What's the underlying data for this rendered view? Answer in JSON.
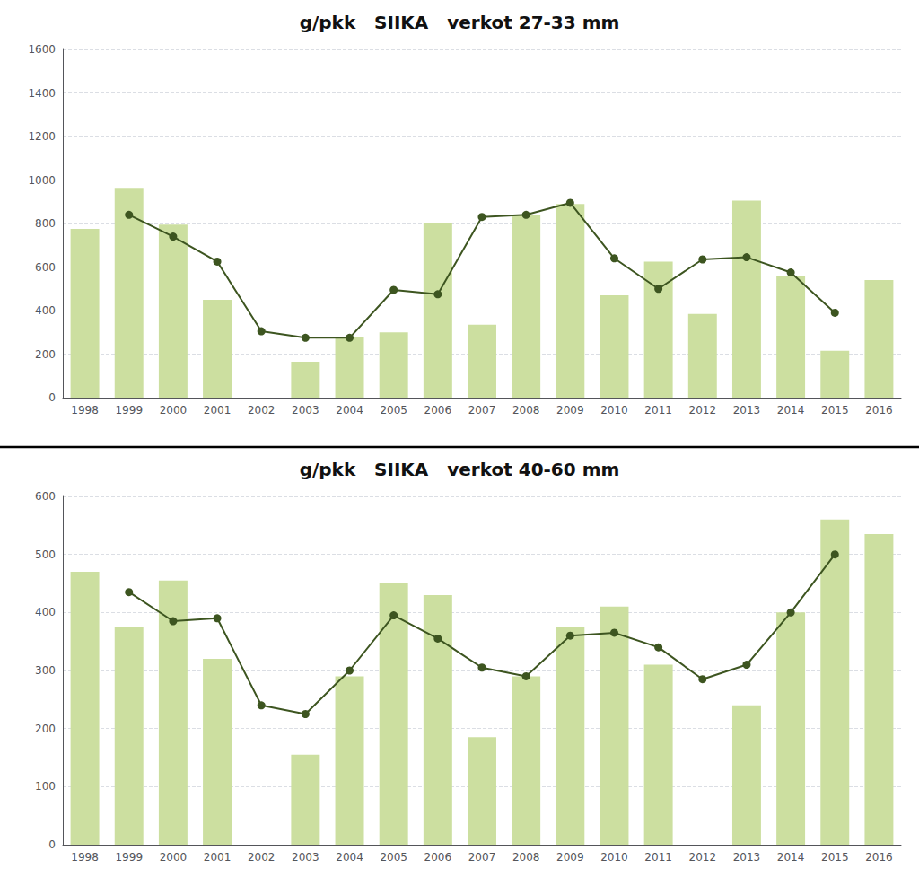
{
  "chart_data": [
    {
      "type": "bar",
      "title": "g/pkk   SIIKA   verkot 27-33 mm",
      "categories": [
        "1998",
        "1999",
        "2000",
        "2001",
        "2002",
        "2003",
        "2004",
        "2005",
        "2006",
        "2007",
        "2008",
        "2009",
        "2010",
        "2011",
        "2012",
        "2013",
        "2014",
        "2015",
        "2016"
      ],
      "series": [
        {
          "type": "bar",
          "color": "#ccdfa0",
          "values": [
            775,
            960,
            795,
            450,
            null,
            165,
            280,
            300,
            800,
            335,
            840,
            890,
            470,
            625,
            385,
            905,
            560,
            215,
            540
          ]
        },
        {
          "type": "line",
          "color": "#3d5520",
          "marker": "circle",
          "values": [
            null,
            840,
            740,
            625,
            305,
            275,
            275,
            495,
            475,
            830,
            840,
            895,
            640,
            500,
            635,
            645,
            575,
            390,
            null
          ]
        }
      ],
      "ylim": [
        0,
        1600
      ],
      "yticks": [
        0,
        200,
        400,
        600,
        800,
        1000,
        1200,
        1400,
        1600
      ],
      "grid": true
    },
    {
      "type": "bar",
      "title": "g/pkk   SIIKA   verkot 40-60 mm",
      "categories": [
        "1998",
        "1999",
        "2000",
        "2001",
        "2002",
        "2003",
        "2004",
        "2005",
        "2006",
        "2007",
        "2008",
        "2009",
        "2010",
        "2011",
        "2012",
        "2013",
        "2014",
        "2015",
        "2016"
      ],
      "series": [
        {
          "type": "bar",
          "color": "#ccdfa0",
          "values": [
            470,
            375,
            455,
            320,
            null,
            155,
            290,
            450,
            430,
            185,
            290,
            375,
            410,
            310,
            null,
            240,
            400,
            560,
            535
          ]
        },
        {
          "type": "line",
          "color": "#3d5520",
          "marker": "circle",
          "values": [
            null,
            435,
            385,
            390,
            240,
            225,
            300,
            395,
            355,
            305,
            290,
            360,
            365,
            340,
            285,
            310,
            400,
            500,
            null
          ]
        }
      ],
      "ylim": [
        0,
        600
      ],
      "yticks": [
        0,
        100,
        200,
        300,
        400,
        500,
        600
      ],
      "grid": true
    }
  ]
}
